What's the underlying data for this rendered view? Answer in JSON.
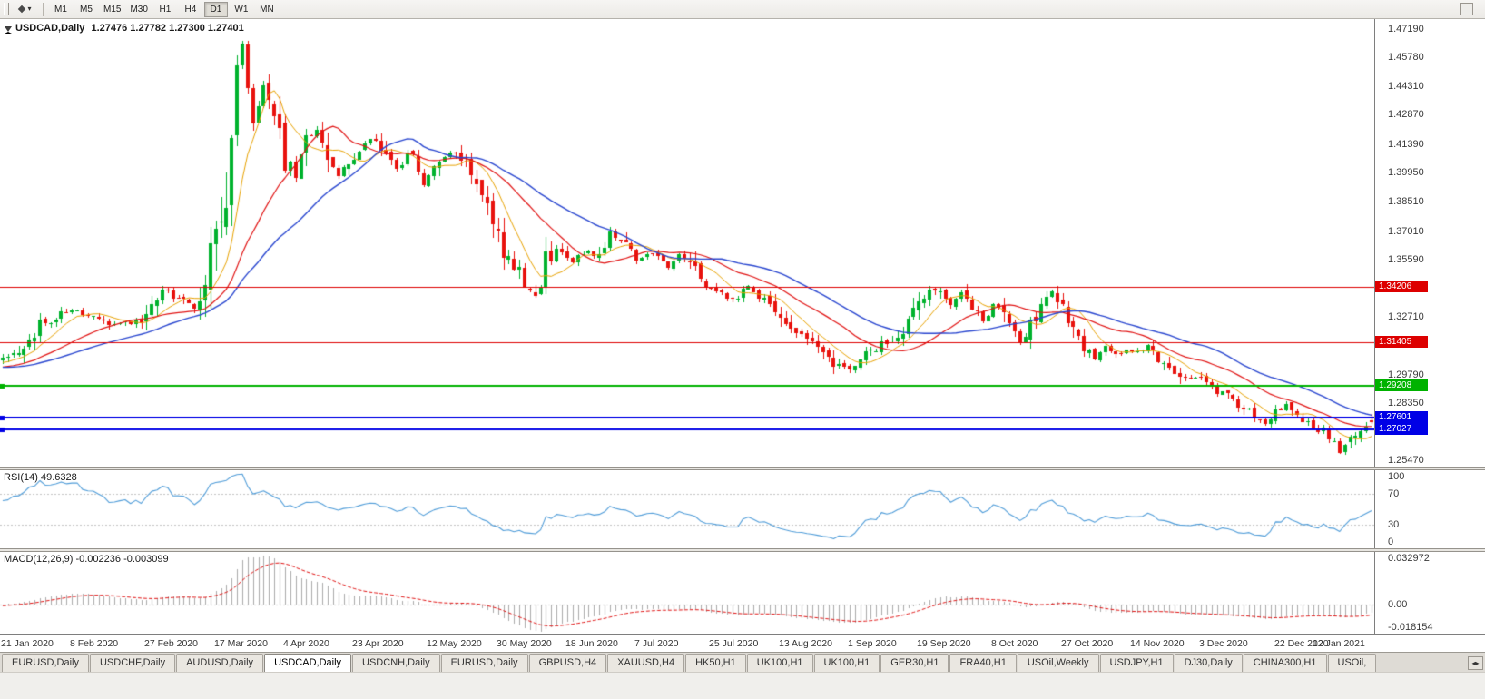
{
  "toolbar": {
    "timeframes": [
      "M1",
      "M5",
      "M15",
      "M30",
      "H1",
      "H4",
      "D1",
      "W1",
      "MN"
    ],
    "active_timeframe": "D1"
  },
  "chart": {
    "title": "USDCAD,Daily",
    "ohlc_text": "1.27476 1.27782 1.27300 1.27401"
  },
  "price_scale": {
    "labels": [
      {
        "text": "1.47190",
        "value": 1.4719
      },
      {
        "text": "1.45780",
        "value": 1.4578
      },
      {
        "text": "1.44310",
        "value": 1.4431
      },
      {
        "text": "1.42870",
        "value": 1.4287
      },
      {
        "text": "1.41390",
        "value": 1.4139
      },
      {
        "text": "1.39950",
        "value": 1.3995
      },
      {
        "text": "1.38510",
        "value": 1.3851
      },
      {
        "text": "1.37010",
        "value": 1.3701
      },
      {
        "text": "1.35590",
        "value": 1.3559
      },
      {
        "text": "1.32710",
        "value": 1.3271
      },
      {
        "text": "1.29790",
        "value": 1.2979
      },
      {
        "text": "1.28350",
        "value": 1.2835
      },
      {
        "text": "1.25470",
        "value": 1.2547
      }
    ],
    "tags": [
      {
        "text": "1.34206",
        "value": 1.34206,
        "color": "#dd0000"
      },
      {
        "text": "1.31405",
        "value": 1.31405,
        "color": "#dd0000"
      },
      {
        "text": "1.29208",
        "value": 1.29208,
        "color": "#00b200"
      },
      {
        "text": "1.27601",
        "value": 1.27601,
        "color": "#0000e6"
      },
      {
        "text": "1.27027",
        "value": 1.27027,
        "color": "#0000e6"
      }
    ]
  },
  "indicators": {
    "rsi": {
      "label": "RSI(14) 49.6328",
      "scale": [
        {
          "text": "100",
          "value": 100
        },
        {
          "text": "70",
          "value": 70
        },
        {
          "text": "30",
          "value": 30
        },
        {
          "text": "0",
          "value": 0
        }
      ],
      "line_color": "#4f9cd8",
      "level_color": "#c4c4c4"
    },
    "macd": {
      "label": "MACD(12,26,9) -0.002236 -0.003099",
      "scale": [
        {
          "text": "0.032972",
          "value": 0.032972
        },
        {
          "text": "0.00",
          "value": 0
        },
        {
          "text": "-0.018154",
          "value": -0.018154
        }
      ],
      "histogram_color": "#ababab",
      "signal_color": "#e01212",
      "zero_line_color": "#c4c4c4"
    }
  },
  "x_axis": {
    "labels": [
      "21 Jan 2020",
      "8 Feb 2020",
      "27 Feb 2020",
      "17 Mar 2020",
      "4 Apr 2020",
      "23 Apr 2020",
      "12 May 2020",
      "30 May 2020",
      "18 Jun 2020",
      "7 Jul 2020",
      "25 Jul 2020",
      "13 Aug 2020",
      "1 Sep 2020",
      "19 Sep 2020",
      "8 Oct 2020",
      "27 Oct 2020",
      "14 Nov 2020",
      "3 Dec 2020",
      "22 Dec 2020",
      "12 Jan 2021"
    ]
  },
  "tabs": {
    "items": [
      "EURUSD,Daily",
      "USDCHF,Daily",
      "AUDUSD,Daily",
      "USDCAD,Daily",
      "USDCNH,Daily",
      "EURUSD,Daily",
      "GBPUSD,H4",
      "XAUUSD,H4",
      "HK50,H1",
      "UK100,H1",
      "UK100,H1",
      "GER30,H1",
      "FRA40,H1",
      "USOil,Weekly",
      "USDJPY,H1",
      "DJ30,Daily",
      "CHINA300,H1",
      "USOil,"
    ],
    "active_index": 3
  },
  "chart_data": {
    "type": "candlestick",
    "symbol": "USDCAD",
    "period": "Daily",
    "last_candle": {
      "open": 1.27476,
      "high": 1.27782,
      "low": 1.273,
      "close": 1.27401
    },
    "visible_candles": 258,
    "warmup_candles": 60,
    "last_label_index": 252,
    "ylim": [
      1.2515,
      1.4769
    ],
    "clamp_low": 1.256,
    "clamp_high": 1.466,
    "up_color": "#00b22d",
    "down_color": "#e8120e",
    "seed": 20210121,
    "noise": {
      "base": 0.0016,
      "slope_mult": 1.2,
      "close_mult": 0.6,
      "gap_mult": 0.25,
      "wick_mult": 0.9
    },
    "moving_averages": [
      {
        "period": 8,
        "color": "#e7a100",
        "width": 1
      },
      {
        "period": 20,
        "color": "#e01212",
        "width": 1.2
      },
      {
        "period": 34,
        "color": "#2946cf",
        "width": 1.4
      }
    ],
    "horizontal_lines": [
      {
        "value": 1.34206,
        "color": "#dd0000",
        "width": 1,
        "handles": false
      },
      {
        "value": 1.31405,
        "color": "#dd0000",
        "width": 1,
        "handles": false
      },
      {
        "value": 1.29208,
        "color": "#00b200",
        "width": 2,
        "handles": true
      },
      {
        "value": 1.27601,
        "color": "#0000e6",
        "width": 2,
        "handles": true
      },
      {
        "value": 1.27027,
        "color": "#0000e6",
        "width": 2,
        "handles": true
      }
    ],
    "rsi": {
      "period": 14,
      "levels": [
        70,
        30
      ],
      "range": [
        0,
        100
      ]
    },
    "macd": {
      "fast": 12,
      "slow": 26,
      "signal": 9,
      "range": [
        -0.018154,
        0.032972
      ]
    },
    "price_path": [
      [
        -60,
        1.324
      ],
      [
        -42,
        1.313
      ],
      [
        -27,
        1.3005
      ],
      [
        -14,
        1.2992
      ],
      [
        -6,
        1.303
      ],
      [
        0,
        1.3055
      ],
      [
        3,
        1.3095
      ],
      [
        8,
        1.325
      ],
      [
        13,
        1.33
      ],
      [
        17,
        1.328
      ],
      [
        21,
        1.323
      ],
      [
        26,
        1.3245
      ],
      [
        28,
        1.331
      ],
      [
        30,
        1.3422
      ],
      [
        33,
        1.336
      ],
      [
        36,
        1.333
      ],
      [
        38,
        1.3425
      ],
      [
        39,
        1.366
      ],
      [
        40,
        1.362
      ],
      [
        41,
        1.376
      ],
      [
        42,
        1.395
      ],
      [
        43,
        1.418
      ],
      [
        44,
        1.446
      ],
      [
        45,
        1.463
      ],
      [
        46,
        1.444
      ],
      [
        47,
        1.426
      ],
      [
        49,
        1.443
      ],
      [
        51,
        1.429
      ],
      [
        53,
        1.406
      ],
      [
        55,
        1.399
      ],
      [
        57,
        1.414
      ],
      [
        59,
        1.42
      ],
      [
        61,
        1.409
      ],
      [
        63,
        1.399
      ],
      [
        66,
        1.408
      ],
      [
        69,
        1.416
      ],
      [
        72,
        1.409
      ],
      [
        74,
        1.402
      ],
      [
        77,
        1.411
      ],
      [
        79,
        1.394
      ],
      [
        82,
        1.408
      ],
      [
        85,
        1.41
      ],
      [
        88,
        1.401
      ],
      [
        90,
        1.393
      ],
      [
        92,
        1.378
      ],
      [
        95,
        1.356
      ],
      [
        97,
        1.35
      ],
      [
        99,
        1.342
      ],
      [
        100,
        1.337
      ],
      [
        101,
        1.3395
      ],
      [
        102,
        1.356
      ],
      [
        104,
        1.362
      ],
      [
        107,
        1.355
      ],
      [
        109,
        1.36
      ],
      [
        112,
        1.358
      ],
      [
        114,
        1.368
      ],
      [
        117,
        1.362
      ],
      [
        119,
        1.357
      ],
      [
        122,
        1.36
      ],
      [
        125,
        1.352
      ],
      [
        127,
        1.358
      ],
      [
        130,
        1.35
      ],
      [
        132,
        1.341
      ],
      [
        135,
        1.339
      ],
      [
        137,
        1.335
      ],
      [
        140,
        1.342
      ],
      [
        142,
        1.338
      ],
      [
        145,
        1.33
      ],
      [
        148,
        1.322
      ],
      [
        150,
        1.318
      ],
      [
        153,
        1.312
      ],
      [
        155,
        1.306
      ],
      [
        157,
        1.302
      ],
      [
        159,
        1.3
      ],
      [
        161,
        1.306
      ],
      [
        163,
        1.309
      ],
      [
        166,
        1.315
      ],
      [
        168,
        1.318
      ],
      [
        171,
        1.328
      ],
      [
        173,
        1.338
      ],
      [
        174,
        1.3422
      ],
      [
        176,
        1.339
      ],
      [
        178,
        1.333
      ],
      [
        180,
        1.338
      ],
      [
        182,
        1.331
      ],
      [
        184,
        1.325
      ],
      [
        186,
        1.332
      ],
      [
        188,
        1.328
      ],
      [
        190,
        1.318
      ],
      [
        191,
        1.314
      ],
      [
        193,
        1.322
      ],
      [
        195,
        1.331
      ],
      [
        197,
        1.339
      ],
      [
        199,
        1.332
      ],
      [
        201,
        1.318
      ],
      [
        203,
        1.312
      ],
      [
        205,
        1.306
      ],
      [
        207,
        1.313
      ],
      [
        209,
        1.308
      ],
      [
        211,
        1.311
      ],
      [
        213,
        1.309
      ],
      [
        215,
        1.313
      ],
      [
        217,
        1.306
      ],
      [
        219,
        1.302
      ],
      [
        221,
        1.298
      ],
      [
        223,
        1.295
      ],
      [
        225,
        1.298
      ],
      [
        227,
        1.292
      ],
      [
        229,
        1.288
      ],
      [
        231,
        1.284
      ],
      [
        233,
        1.28
      ],
      [
        235,
        1.277
      ],
      [
        237,
        1.274
      ],
      [
        239,
        1.278
      ],
      [
        241,
        1.282
      ],
      [
        243,
        1.276
      ],
      [
        245,
        1.272
      ],
      [
        247,
        1.268
      ],
      [
        248,
        1.27
      ],
      [
        249,
        1.266
      ],
      [
        250,
        1.263
      ],
      [
        251,
        1.2592
      ],
      [
        252,
        1.264
      ],
      [
        253,
        1.269
      ],
      [
        254,
        1.266
      ],
      [
        255,
        1.27
      ],
      [
        256,
        1.272
      ],
      [
        257,
        1.274
      ]
    ]
  }
}
